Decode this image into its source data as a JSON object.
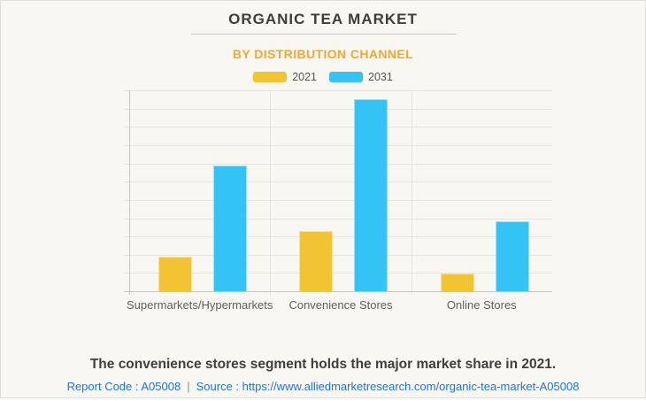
{
  "header": {
    "title": "ORGANIC TEA MARKET",
    "subtitle": "BY DISTRIBUTION CHANNEL"
  },
  "summary": "The convenience stores segment holds the major market share in 2021.",
  "footer": {
    "report_code": "Report Code : A05008",
    "separator": "|",
    "source_label": "Source :",
    "source_url": "https://www.alliedmarketresearch.com/organic-tea-market-A05008"
  },
  "chart_data": {
    "type": "bar",
    "title": "ORGANIC TEA MARKET",
    "subtitle": "BY DISTRIBUTION CHANNEL",
    "categories": [
      "Supermarkets/Hypermarkets",
      "Convenience Stores",
      "Online Stores"
    ],
    "series": [
      {
        "name": "2021",
        "color": "#F2C433",
        "values": [
          17,
          30,
          9
        ]
      },
      {
        "name": "2031",
        "color": "#34C3F5",
        "values": [
          62.5,
          95.5,
          35
        ]
      }
    ],
    "xlabel": "",
    "ylabel": "",
    "ylim": [
      0,
      100
    ],
    "units": "relative share of chart maximum (y-axis unlabeled in source)",
    "grid": true,
    "gridline_intervals": 11,
    "legend_position": "top-center",
    "y_axis_labels_visible": false
  },
  "colors": {
    "background": "#F9F7F1",
    "card_border": "#E1DFD9",
    "title_text": "#3D3D3D",
    "subtitle_text": "#F8A62B",
    "series_2021": "#F2C433",
    "series_2031": "#34C3F5",
    "gridline": "#E7E4DE",
    "axis_line": "#C8C6C0",
    "category_label": "#5E5E5E",
    "summary_text": "#3F3F3F",
    "link_text": "#2273DB"
  }
}
